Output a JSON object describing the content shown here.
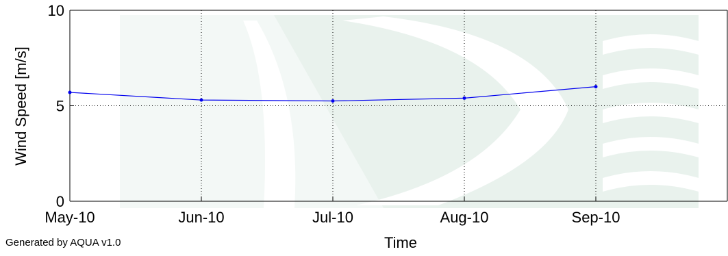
{
  "credit": "Generated by AQUA v1.0",
  "chart_data": {
    "type": "line",
    "title": "",
    "xlabel": "Time",
    "ylabel": "Wind Speed [m/s]",
    "x_ticks": [
      "May-10",
      "Jun-10",
      "Jul-10",
      "Aug-10",
      "Sep-10"
    ],
    "y_ticks": [
      "0",
      "5",
      "10"
    ],
    "xlim": [
      "May-10",
      "Oct-10"
    ],
    "ylim": [
      0,
      10
    ],
    "grid": true,
    "series": [
      {
        "x": [
          "May-10",
          "Jun-10",
          "Jul-10",
          "Aug-10",
          "Sep-10"
        ],
        "y": [
          5.7,
          5.3,
          5.25,
          5.4,
          6.0
        ],
        "color": "#0000ee"
      }
    ]
  }
}
